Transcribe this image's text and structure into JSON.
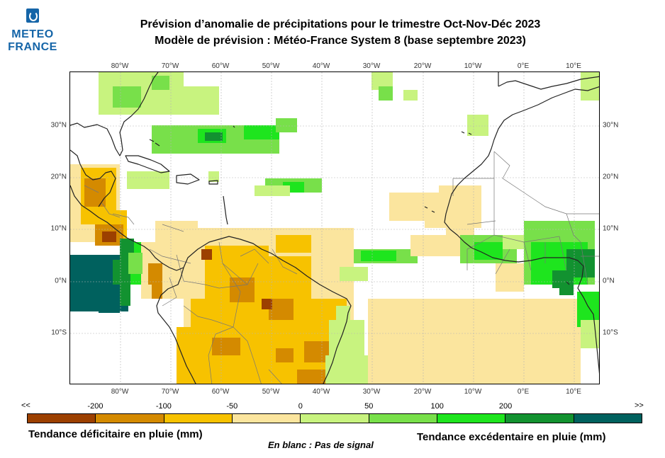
{
  "header": {
    "logo_line1": "METEO",
    "logo_line2": "FRANCE",
    "title_line1": "Prévision d’anomalie de précipitations pour le trimestre Oct-Nov-Déc 2023",
    "title_line2": "Modèle de prévision : Météo-France System 8 (base septembre 2023)"
  },
  "map": {
    "lon_labels": [
      "80°W",
      "70°W",
      "60°W",
      "50°W",
      "40°W",
      "30°W",
      "20°W",
      "10°W",
      "0°E",
      "10°E"
    ],
    "lat_labels": [
      "30°N",
      "20°N",
      "10°N",
      "0°N",
      "10°S"
    ],
    "colors": {
      "ocean": "#ffffff",
      "coast": "#222222",
      "border": "#777777",
      "grid": "#aaaaaa"
    }
  },
  "legend": {
    "left_arrow": "<<",
    "right_arrow": ">>",
    "labels": [
      "-200",
      "-100",
      "-50",
      "0",
      "50",
      "100",
      "200"
    ],
    "colors": [
      "#9c4000",
      "#d48a00",
      "#f7c200",
      "#fbe59e",
      "#c8f37f",
      "#78e04a",
      "#1ee51e",
      "#129230",
      "#00615e"
    ]
  },
  "captions": {
    "deficit": "Tendance déficitaire en pluie (mm)",
    "excess": "Tendance excédentaire en pluie (mm)",
    "no_signal": "En blanc : Pas de signal"
  }
}
